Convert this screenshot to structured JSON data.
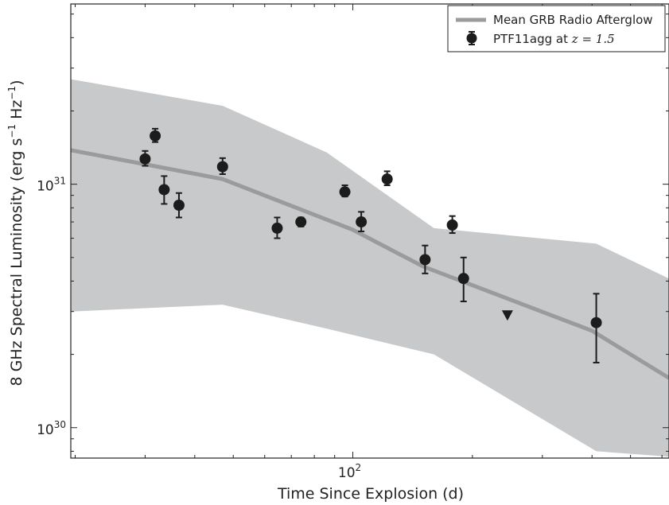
{
  "chart_data": {
    "type": "scatter",
    "title": "",
    "xlabel": "Time Since Explosion (d)",
    "ylabel": "8 GHz Spectral Luminosity (erg s⁻¹ Hz⁻¹)",
    "x_scale": "log",
    "y_scale": "log",
    "xlim": [
      19.5,
      625
    ],
    "ylim": [
      7.5e+29,
      5.5e+31
    ],
    "x_ticks": [
      {
        "base": "10",
        "exp": "2",
        "value": 100
      }
    ],
    "y_ticks": [
      {
        "base": "10",
        "exp": "30",
        "value": 1e+30
      },
      {
        "base": "10",
        "exp": "31",
        "value": 1e+31
      }
    ],
    "grid": false,
    "legend_position": "top-right",
    "legend": {
      "mean_label": "Mean GRB Radio Afterglow",
      "points_label_prefix": "PTF11agg at ",
      "points_label_math": "z = 1.5"
    },
    "colors": {
      "band": "#c8c9ca",
      "mean_line": "#9a9b9c",
      "points": "#1c1c1c",
      "axes": "#222222"
    },
    "mean_line": {
      "x": [
        19.5,
        47.0,
        100,
        150,
        400,
        625
      ],
      "y": [
        1.38e+31,
        1.05e+31,
        6.5e+30,
        4.6e+30,
        2.5e+30,
        1.6e+30
      ]
    },
    "band": {
      "x": [
        19.5,
        47.0,
        86.0,
        160,
        410,
        625
      ],
      "upper": [
        2.7e+31,
        2.1e+31,
        1.35e+31,
        6.6e+30,
        5.7e+30,
        4.1e+30
      ],
      "lower": [
        3e+30,
        3.2e+30,
        2.55e+30,
        2e+30,
        8e+29,
        7.6e+29
      ]
    },
    "points": [
      {
        "x": 30.0,
        "y": 1.27e+31,
        "err_low": 1.19e+31,
        "err_high": 1.37e+31
      },
      {
        "x": 31.8,
        "y": 1.58e+31,
        "err_low": 1.49e+31,
        "err_high": 1.69e+31
      },
      {
        "x": 33.5,
        "y": 9.5e+30,
        "err_low": 8.3e+30,
        "err_high": 1.08e+31
      },
      {
        "x": 36.5,
        "y": 8.2e+30,
        "err_low": 7.3e+30,
        "err_high": 9.2e+30
      },
      {
        "x": 47.0,
        "y": 1.18e+31,
        "err_low": 1.1e+31,
        "err_high": 1.28e+31
      },
      {
        "x": 64.5,
        "y": 6.6e+30,
        "err_low": 6e+30,
        "err_high": 7.3e+30
      },
      {
        "x": 74.0,
        "y": 7e+30,
        "err_low": 6.7e+30,
        "err_high": 7.3e+30
      },
      {
        "x": 95.5,
        "y": 9.3e+30,
        "err_low": 8.9e+30,
        "err_high": 9.9e+30
      },
      {
        "x": 105.0,
        "y": 7e+30,
        "err_low": 6.4e+30,
        "err_high": 7.7e+30
      },
      {
        "x": 122.0,
        "y": 1.05e+31,
        "err_low": 9.9e+30,
        "err_high": 1.13e+31
      },
      {
        "x": 152.0,
        "y": 4.9e+30,
        "err_low": 4.3e+30,
        "err_high": 5.6e+30
      },
      {
        "x": 178.0,
        "y": 6.8e+30,
        "err_low": 6.3e+30,
        "err_high": 7.4e+30
      },
      {
        "x": 190.0,
        "y": 4.1e+30,
        "err_low": 3.3e+30,
        "err_high": 5e+30
      },
      {
        "x": 410.0,
        "y": 2.7e+30,
        "err_low": 1.85e+30,
        "err_high": 3.55e+30
      }
    ],
    "upper_limits": [
      {
        "x": 245.0,
        "y": 2.9e+30
      }
    ]
  }
}
